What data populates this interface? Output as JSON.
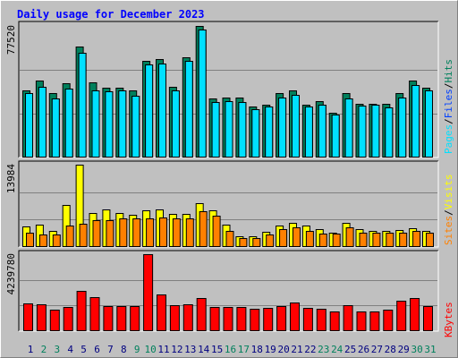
{
  "chart_data": [
    {
      "type": "bar",
      "title": "Daily usage for December 2023",
      "ylim": [
        0,
        77520
      ],
      "yticks": [
        77520
      ],
      "gridlines": [
        25840,
        51680
      ],
      "legend_separator": "/",
      "series": [
        {
          "name": "Pages",
          "color": "#00e0ff",
          "values": [
            37970,
            41660,
            34800,
            40600,
            61700,
            39550,
            39020,
            39550,
            36390,
            54840,
            55370,
            39550,
            56950,
            75410,
            32690,
            33220,
            32690,
            28470,
            30060,
            35330,
            36910,
            30060,
            31110,
            25310,
            34800,
            30580,
            31110,
            29530,
            35330,
            42710,
            39550
          ]
        },
        {
          "name": "Files",
          "color": "#0040ff",
          "values": [
            37970,
            41660,
            34800,
            40600,
            61700,
            39550,
            39020,
            39550,
            36390,
            54840,
            55370,
            39550,
            56950,
            75410,
            32690,
            33220,
            32690,
            28470,
            30060,
            35330,
            36910,
            30060,
            31110,
            25310,
            34800,
            30580,
            31110,
            29530,
            35330,
            42710,
            39550
          ]
        },
        {
          "name": "Hits",
          "color": "#00805c",
          "values": [
            39550,
            45350,
            37970,
            43770,
            65390,
            44290,
            41130,
            41130,
            39550,
            56950,
            58000,
            41660,
            59060,
            77520,
            34800,
            35330,
            35330,
            30060,
            31110,
            37970,
            39550,
            31110,
            33220,
            26370,
            37970,
            31640,
            31640,
            31640,
            37970,
            45350,
            41130
          ]
        }
      ]
    },
    {
      "type": "bar",
      "ylim": [
        0,
        13984
      ],
      "yticks": [
        13984
      ],
      "gridlines": [
        4661,
        9323
      ],
      "legend_separator": "/",
      "series": [
        {
          "name": "Sites",
          "color": "#ff8000",
          "values": [
            2432,
            2128,
            2128,
            3648,
            3952,
            4560,
            4560,
            4864,
            4864,
            4864,
            5016,
            4864,
            4864,
            6080,
            5320,
            2736,
            1520,
            1520,
            2128,
            3040,
            3344,
            2736,
            2280,
            2280,
            3344,
            2432,
            2432,
            2432,
            2432,
            2736,
            2432
          ]
        },
        {
          "name": "Visits",
          "color": "#ffff00",
          "values": [
            3496,
            3800,
            2736,
            7144,
            13984,
            5776,
            6384,
            5776,
            5472,
            6232,
            6384,
            5624,
            5624,
            7448,
            6232,
            3800,
            1824,
            1824,
            2584,
            3648,
            4104,
            3648,
            3040,
            2432,
            4104,
            3040,
            2736,
            2736,
            2888,
            3192,
            2736
          ]
        }
      ]
    },
    {
      "type": "bar",
      "ylim": [
        0,
        4239780
      ],
      "yticks": [
        4239780
      ],
      "gridlines": [
        1413260,
        2826520
      ],
      "series": [
        {
          "name": "KBytes",
          "color": "#ff0000",
          "values": [
            1528300,
            1479000,
            1183200,
            1331100,
            2218500,
            1873400,
            1380400,
            1380400,
            1380400,
            4239780,
            2021300,
            1429700,
            1479000,
            1824100,
            1331100,
            1331100,
            1331100,
            1232500,
            1281800,
            1380400,
            1577600,
            1281800,
            1232500,
            1084600,
            1429700,
            1084600,
            1084600,
            1183200,
            1676200,
            1824100,
            1380400
          ]
        }
      ],
      "categories": [
        "1",
        "2",
        "3",
        "4",
        "5",
        "6",
        "7",
        "8",
        "9",
        "10",
        "11",
        "12",
        "13",
        "14",
        "15",
        "16",
        "17",
        "18",
        "19",
        "20",
        "21",
        "22",
        "23",
        "24",
        "25",
        "26",
        "27",
        "28",
        "29",
        "30",
        "31"
      ],
      "category_colors": [
        "#000080",
        "#00805c",
        "#00805c",
        "#000080",
        "#000080",
        "#000080",
        "#000080",
        "#000080",
        "#00805c",
        "#00805c",
        "#000080",
        "#000080",
        "#000080",
        "#000080",
        "#000080",
        "#00805c",
        "#00805c",
        "#000080",
        "#000080",
        "#000080",
        "#000080",
        "#000080",
        "#00805c",
        "#00805c",
        "#000080",
        "#000080",
        "#000080",
        "#000080",
        "#000080",
        "#00805c",
        "#00805c"
      ]
    }
  ]
}
